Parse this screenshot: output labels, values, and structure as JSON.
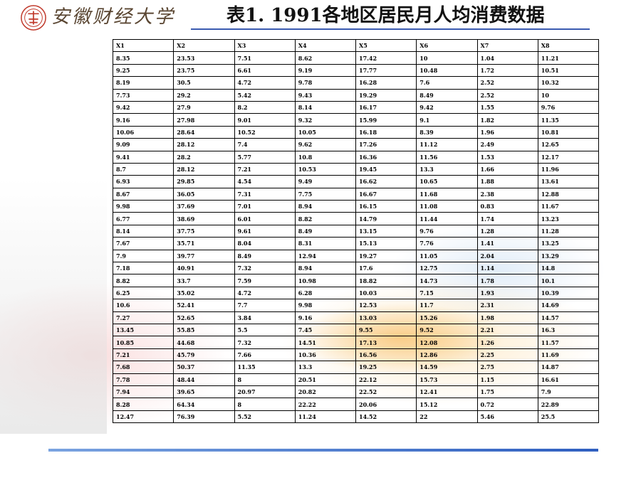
{
  "header": {
    "school_name": "安徽财经大学",
    "title": "表1.  1991各地区居民月人均消费数据"
  },
  "table": {
    "columns": [
      "X1",
      "X2",
      "X3",
      "X4",
      "X5",
      "X6",
      "X7",
      "X8"
    ],
    "rows": [
      [
        "8.35",
        "23.53",
        "7.51",
        "8.62",
        "17.42",
        "10",
        "1.04",
        "11.21"
      ],
      [
        "9.25",
        "23.75",
        "6.61",
        "9.19",
        "17.77",
        "10.48",
        "1.72",
        "10.51"
      ],
      [
        "8.19",
        "30.5",
        "4.72",
        "9.78",
        "16.28",
        "7.6",
        "2.52",
        "10.32"
      ],
      [
        "7.73",
        "29.2",
        "5.42",
        "9.43",
        "19.29",
        "8.49",
        "2.52",
        "10"
      ],
      [
        "9.42",
        "27.9",
        "8.2",
        "8.14",
        "16.17",
        "9.42",
        "1.55",
        "9.76"
      ],
      [
        "9.16",
        "27.98",
        "9.01",
        "9.32",
        "15.99",
        "9.1",
        "1.82",
        "11.35"
      ],
      [
        "10.06",
        "28.64",
        "10.52",
        "10.05",
        "16.18",
        "8.39",
        "1.96",
        "10.81"
      ],
      [
        "9.09",
        "28.12",
        "7.4",
        "9.62",
        "17.26",
        "11.12",
        "2.49",
        "12.65"
      ],
      [
        "9.41",
        "28.2",
        "5.77",
        "10.8",
        "16.36",
        "11.56",
        "1.53",
        "12.17"
      ],
      [
        "8.7",
        "28.12",
        "7.21",
        "10.53",
        "19.45",
        "13.3",
        "1.66",
        "11.96"
      ],
      [
        "6.93",
        "29.85",
        "4.54",
        "9.49",
        "16.62",
        "10.65",
        "1.88",
        "13.61"
      ],
      [
        "8.67",
        "36.05",
        "7.31",
        "7.75",
        "16.67",
        "11.68",
        "2.38",
        "12.88"
      ],
      [
        "9.98",
        "37.69",
        "7.01",
        "8.94",
        "16.15",
        "11.08",
        "0.83",
        "11.67"
      ],
      [
        "6.77",
        "38.69",
        "6.01",
        "8.82",
        "14.79",
        "11.44",
        "1.74",
        "13.23"
      ],
      [
        "8.14",
        "37.75",
        "9.61",
        "8.49",
        "13.15",
        "9.76",
        "1.28",
        "11.28"
      ],
      [
        "7.67",
        "35.71",
        "8.04",
        "8.31",
        "15.13",
        "7.76",
        "1.41",
        "13.25"
      ],
      [
        "7.9",
        "39.77",
        "8.49",
        "12.94",
        "19.27",
        "11.05",
        "2.04",
        "13.29"
      ],
      [
        "7.18",
        "40.91",
        "7.32",
        "8.94",
        "17.6",
        "12.75",
        "1.14",
        "14.8"
      ],
      [
        "8.82",
        "33.7",
        "7.59",
        "10.98",
        "18.82",
        "14.73",
        "1.78",
        "10.1"
      ],
      [
        "6.25",
        "35.02",
        "4.72",
        "6.28",
        "10.03",
        "7.15",
        "1.93",
        "10.39"
      ],
      [
        "10.6",
        "52.41",
        "7.7",
        "9.98",
        "12.53",
        "11.7",
        "2.31",
        "14.69"
      ],
      [
        "7.27",
        "52.65",
        "3.84",
        "9.16",
        "13.03",
        "15.26",
        "1.98",
        "14.57"
      ],
      [
        "13.45",
        "55.85",
        "5.5",
        "7.45",
        "9.55",
        "9.52",
        "2.21",
        "16.3"
      ],
      [
        "10.85",
        "44.68",
        "7.32",
        "14.51",
        "17.13",
        "12.08",
        "1.26",
        "11.57"
      ],
      [
        "7.21",
        "45.79",
        "7.66",
        "10.36",
        "16.56",
        "12.86",
        "2.25",
        "11.69"
      ],
      [
        "7.68",
        "50.37",
        "11.35",
        "13.3",
        "19.25",
        "14.59",
        "2.75",
        "14.87"
      ],
      [
        "7.78",
        "48.44",
        "8",
        "20.51",
        "22.12",
        "15.73",
        "1.15",
        "16.61"
      ],
      [
        "7.94",
        "39.65",
        "20.97",
        "20.82",
        "22.52",
        "12.41",
        "1.75",
        "7.9"
      ],
      [
        "8.28",
        "64.34",
        "8",
        "22.22",
        "20.06",
        "15.12",
        "0.72",
        "22.89"
      ],
      [
        "12.47",
        "76.39",
        "5.52",
        "11.24",
        "14.52",
        "22",
        "5.46",
        "25.5"
      ]
    ]
  },
  "colors": {
    "title_underline": "#3a5ab0",
    "bottom_bar": "#2f5fc0",
    "logo": "#c0392b"
  }
}
